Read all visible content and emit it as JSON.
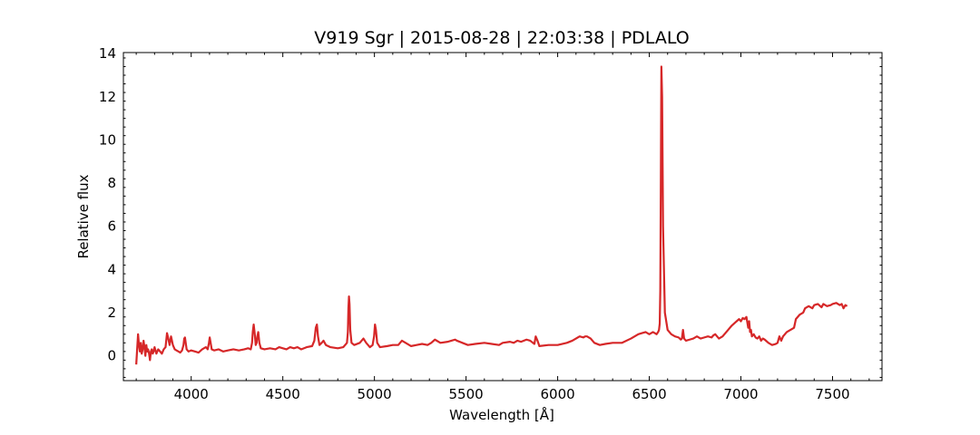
{
  "chart_data": {
    "type": "line",
    "title": "V919 Sgr | 2015-08-28 | 22:03:38 | PDLALO",
    "xlabel": "Wavelength [Å]",
    "ylabel": "Relative flux",
    "xlim": [
      3630,
      7770
    ],
    "ylim": [
      -1.15,
      14.05
    ],
    "xticks": [
      4000,
      4500,
      5000,
      5500,
      6000,
      6500,
      7000,
      7500
    ],
    "yticks": [
      0,
      2,
      4,
      6,
      8,
      10,
      12,
      14
    ],
    "grid": false,
    "line_color": "#d62728",
    "series": [
      {
        "x": [
          3700,
          3705,
          3710,
          3715,
          3720,
          3725,
          3730,
          3735,
          3740,
          3745,
          3750,
          3755,
          3760,
          3765,
          3770,
          3775,
          3780,
          3785,
          3790,
          3795,
          3800,
          3810,
          3820,
          3830,
          3840,
          3850,
          3860,
          3868,
          3875,
          3882,
          3890,
          3900,
          3910,
          3920,
          3930,
          3940,
          3950,
          3958,
          3962,
          3966,
          3970,
          3975,
          3985,
          4000,
          4020,
          4040,
          4060,
          4080,
          4090,
          4097,
          4101,
          4106,
          4112,
          4125,
          4150,
          4175,
          4200,
          4230,
          4260,
          4290,
          4310,
          4325,
          4332,
          4336,
          4341,
          4347,
          4352,
          4357,
          4361,
          4366,
          4372,
          4380,
          4400,
          4430,
          4460,
          4480,
          4500,
          4520,
          4540,
          4560,
          4580,
          4600,
          4630,
          4660,
          4672,
          4680,
          4686,
          4692,
          4700,
          4712,
          4722,
          4735,
          4760,
          4800,
          4830,
          4850,
          4855,
          4858,
          4861,
          4864,
          4868,
          4875,
          4890,
          4920,
          4940,
          4955,
          4965,
          4975,
          4990,
          4998,
          5003,
          5008,
          5015,
          5030,
          5070,
          5100,
          5130,
          5150,
          5170,
          5200,
          5230,
          5260,
          5290,
          5310,
          5330,
          5360,
          5400,
          5420,
          5440,
          5450,
          5480,
          5510,
          5550,
          5600,
          5640,
          5680,
          5700,
          5740,
          5760,
          5780,
          5800,
          5830,
          5850,
          5865,
          5873,
          5880,
          5890,
          5900,
          5950,
          6000,
          6050,
          6080,
          6100,
          6120,
          6140,
          6150,
          6160,
          6180,
          6200,
          6230,
          6260,
          6300,
          6350,
          6400,
          6420,
          6440,
          6460,
          6480,
          6500,
          6520,
          6530,
          6540,
          6548,
          6553,
          6557,
          6560,
          6563,
          6566,
          6570,
          6575,
          6585,
          6600,
          6620,
          6640,
          6660,
          6672,
          6678,
          6684,
          6690,
          6700,
          6720,
          6740,
          6760,
          6780,
          6800,
          6820,
          6840,
          6850,
          6860,
          6880,
          6900,
          6920,
          6930,
          6950,
          6970,
          6990,
          7000,
          7010,
          7020,
          7030,
          7040,
          7045,
          7050,
          7055,
          7060,
          7070,
          7080,
          7090,
          7100,
          7110,
          7120,
          7130,
          7150,
          7170,
          7190,
          7200,
          7210,
          7220,
          7230,
          7240,
          7250,
          7270,
          7290,
          7300,
          7320,
          7340,
          7350,
          7370,
          7390,
          7400,
          7420,
          7440,
          7450,
          7470,
          7490,
          7500,
          7520,
          7540,
          7550,
          7560,
          7570,
          7580
        ],
        "values": [
          -0.4,
          0.3,
          1.0,
          0.5,
          0.2,
          0.6,
          0.1,
          0.3,
          0.7,
          0.4,
          0.0,
          0.5,
          0.2,
          0.3,
          0.1,
          -0.2,
          0.2,
          0.3,
          0.1,
          0.2,
          0.4,
          0.1,
          0.3,
          0.2,
          0.1,
          0.3,
          0.4,
          1.05,
          0.8,
          0.5,
          0.9,
          0.5,
          0.3,
          0.25,
          0.2,
          0.15,
          0.25,
          0.5,
          0.8,
          0.85,
          0.6,
          0.3,
          0.2,
          0.25,
          0.2,
          0.15,
          0.3,
          0.4,
          0.3,
          0.6,
          0.85,
          0.6,
          0.3,
          0.25,
          0.3,
          0.2,
          0.25,
          0.3,
          0.25,
          0.3,
          0.35,
          0.3,
          0.6,
          1.1,
          1.45,
          1.0,
          0.5,
          0.6,
          0.9,
          1.1,
          0.6,
          0.35,
          0.3,
          0.35,
          0.3,
          0.4,
          0.35,
          0.3,
          0.4,
          0.35,
          0.4,
          0.3,
          0.4,
          0.45,
          0.7,
          1.3,
          1.45,
          0.9,
          0.5,
          0.6,
          0.7,
          0.5,
          0.4,
          0.35,
          0.4,
          0.6,
          1.1,
          2.2,
          2.75,
          2.4,
          1.2,
          0.6,
          0.5,
          0.6,
          0.8,
          0.6,
          0.5,
          0.4,
          0.5,
          0.9,
          1.45,
          1.2,
          0.6,
          0.4,
          0.45,
          0.5,
          0.5,
          0.7,
          0.6,
          0.45,
          0.5,
          0.55,
          0.5,
          0.6,
          0.75,
          0.6,
          0.65,
          0.7,
          0.75,
          0.7,
          0.6,
          0.5,
          0.55,
          0.6,
          0.55,
          0.5,
          0.6,
          0.65,
          0.6,
          0.7,
          0.65,
          0.75,
          0.7,
          0.6,
          0.55,
          0.9,
          0.7,
          0.45,
          0.5,
          0.5,
          0.6,
          0.7,
          0.8,
          0.9,
          0.85,
          0.9,
          0.9,
          0.8,
          0.6,
          0.5,
          0.55,
          0.6,
          0.6,
          0.8,
          0.9,
          1.0,
          1.05,
          1.1,
          1.0,
          1.1,
          1.05,
          1.0,
          1.1,
          1.2,
          1.5,
          3.0,
          8.0,
          13.4,
          12.0,
          6.0,
          2.0,
          1.2,
          1.0,
          0.9,
          0.85,
          0.75,
          0.8,
          1.2,
          0.8,
          0.7,
          0.75,
          0.8,
          0.9,
          0.8,
          0.85,
          0.9,
          0.85,
          0.95,
          1.0,
          0.8,
          0.9,
          1.1,
          1.2,
          1.4,
          1.55,
          1.7,
          1.6,
          1.75,
          1.7,
          1.8,
          1.3,
          1.6,
          1.1,
          1.2,
          0.9,
          1.0,
          0.85,
          0.8,
          0.9,
          0.7,
          0.8,
          0.75,
          0.6,
          0.5,
          0.55,
          0.6,
          0.9,
          0.7,
          0.9,
          1.0,
          1.1,
          1.2,
          1.3,
          1.7,
          1.9,
          2.0,
          2.2,
          2.3,
          2.2,
          2.35,
          2.4,
          2.25,
          2.4,
          2.3,
          2.35,
          2.4,
          2.45,
          2.35,
          2.4,
          2.2,
          2.35,
          2.3
        ]
      }
    ]
  }
}
